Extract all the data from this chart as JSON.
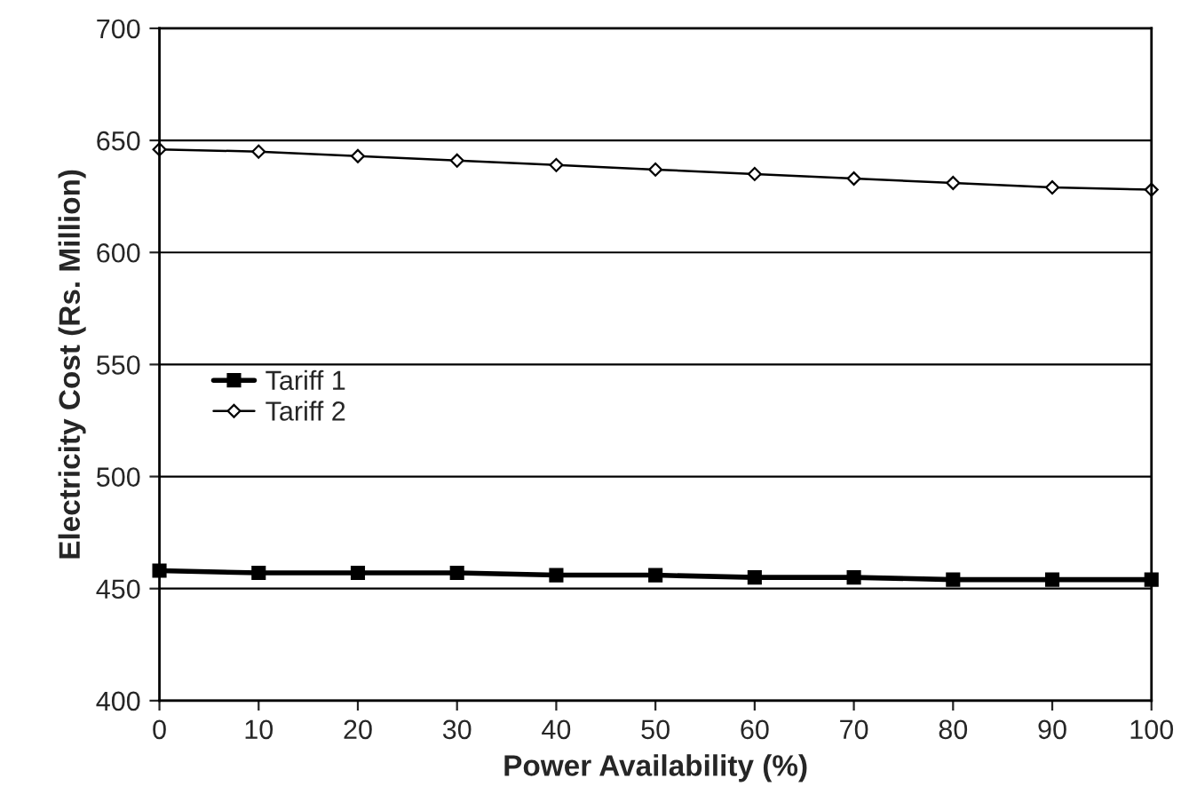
{
  "chart_data": {
    "type": "line",
    "xlabel": "Power Availability (%)",
    "ylabel": "Electricity Cost (Rs. Million)",
    "x": [
      0,
      10,
      20,
      30,
      40,
      50,
      60,
      70,
      80,
      90,
      100
    ],
    "series": [
      {
        "name": "Tariff 1",
        "color": "#000000",
        "marker": "square",
        "values": [
          458,
          457,
          457,
          457,
          456,
          456,
          455,
          455,
          454,
          454,
          454
        ]
      },
      {
        "name": "Tariff 2",
        "color": "#000000",
        "marker": "diamond",
        "values": [
          646,
          645,
          643,
          641,
          639,
          637,
          635,
          633,
          631,
          629,
          628
        ]
      }
    ],
    "xlim": [
      0,
      100
    ],
    "xticks": [
      0,
      10,
      20,
      30,
      40,
      50,
      60,
      70,
      80,
      90,
      100
    ],
    "ylim": [
      400,
      700
    ],
    "yticks": [
      400,
      450,
      500,
      550,
      600,
      650,
      700
    ],
    "grid": "y",
    "legend": "center left",
    "line_style": "solid"
  }
}
